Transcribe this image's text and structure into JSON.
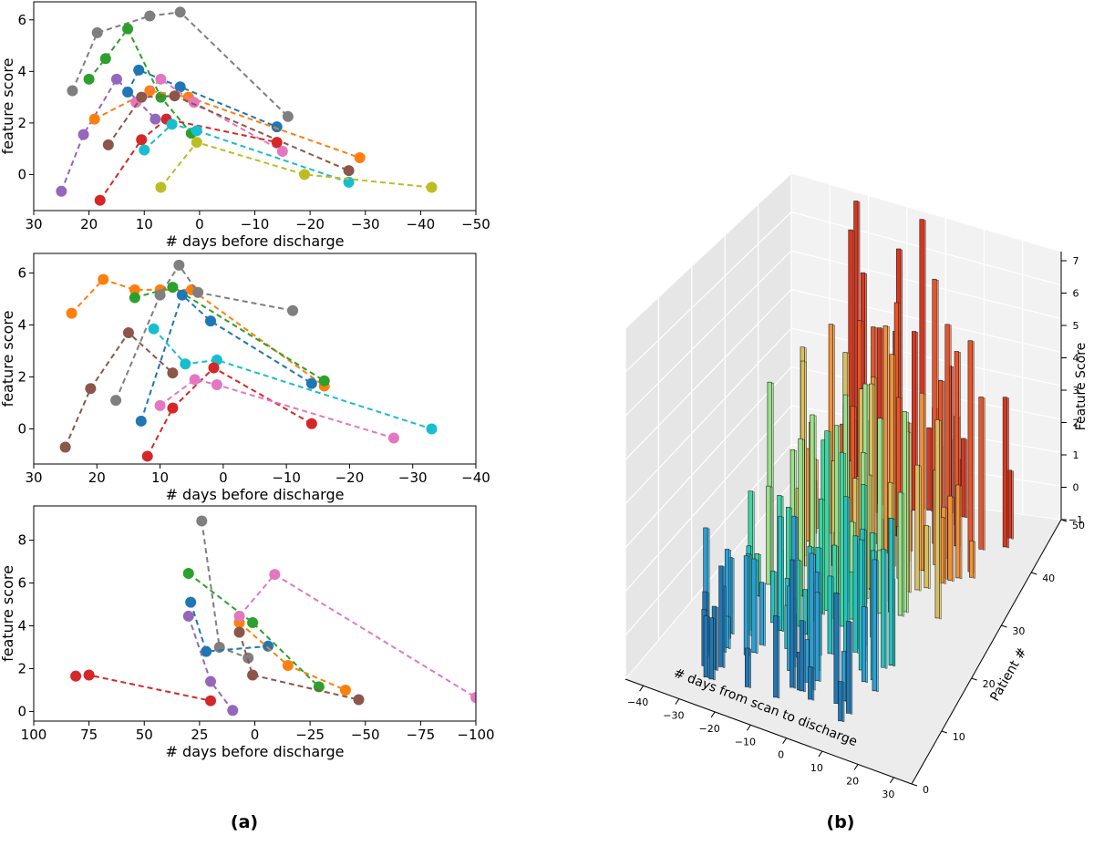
{
  "panel_labels": {
    "a": "(a)",
    "b": "(b)"
  },
  "colors": {
    "blue": "#1f77b4",
    "orange": "#ff7f0e",
    "green": "#2ca02c",
    "red": "#d62728",
    "purple": "#9467bd",
    "brown": "#8c564b",
    "pink": "#e377c2",
    "gray": "#7f7f7f",
    "olive": "#bcbd22",
    "cyan": "#17becf"
  },
  "chart_data": [
    {
      "type": "line",
      "xlabel": "# days before discharge",
      "ylabel": "feature score",
      "xlim": [
        30,
        -50
      ],
      "ylim": [
        -1.4,
        6.7
      ],
      "xticks": [
        30,
        20,
        10,
        0,
        -10,
        -20,
        -30,
        -40,
        -50
      ],
      "yticks": [
        0,
        2,
        4,
        6
      ],
      "xtick_labels": [
        "30",
        "20",
        "10",
        "0",
        "−10",
        "−20",
        "−30",
        "−40",
        "−50"
      ],
      "ytick_labels": [
        "0",
        "2",
        "4",
        "6"
      ],
      "series": [
        {
          "color": "gray",
          "x": [
            23,
            18.5,
            9,
            3.5,
            -16
          ],
          "y": [
            3.25,
            5.5,
            6.15,
            6.3,
            2.25
          ]
        },
        {
          "color": "green",
          "x": [
            20,
            17,
            13,
            7,
            1.5
          ],
          "y": [
            3.7,
            4.5,
            5.65,
            3.0,
            1.6
          ]
        },
        {
          "color": "purple",
          "x": [
            25,
            21,
            15,
            8
          ],
          "y": [
            -0.65,
            1.55,
            3.7,
            2.15
          ]
        },
        {
          "color": "blue",
          "x": [
            13,
            11,
            3.5,
            -14
          ],
          "y": [
            3.2,
            4.05,
            3.4,
            1.85
          ]
        },
        {
          "color": "orange",
          "x": [
            19,
            9,
            2,
            -29
          ],
          "y": [
            2.15,
            3.25,
            3.0,
            0.65
          ]
        },
        {
          "color": "pink",
          "x": [
            11.5,
            7,
            1,
            -15
          ],
          "y": [
            2.8,
            3.7,
            2.8,
            0.9
          ]
        },
        {
          "color": "brown",
          "x": [
            16.5,
            10.5,
            4.5,
            -27
          ],
          "y": [
            1.15,
            3.0,
            3.05,
            0.15
          ]
        },
        {
          "color": "red",
          "x": [
            18,
            10.5,
            6,
            -14
          ],
          "y": [
            -1.0,
            1.35,
            2.15,
            1.25
          ]
        },
        {
          "color": "cyan",
          "x": [
            10,
            5,
            0.5,
            -27
          ],
          "y": [
            0.95,
            1.95,
            1.7,
            -0.3
          ]
        },
        {
          "color": "olive",
          "x": [
            7,
            0.5,
            -19,
            -42
          ],
          "y": [
            -0.5,
            1.25,
            0.0,
            -0.5
          ]
        }
      ]
    },
    {
      "type": "line",
      "xlabel": "# days before discharge",
      "ylabel": "feature score",
      "xlim": [
        30,
        -40
      ],
      "ylim": [
        -1.35,
        6.75
      ],
      "xticks": [
        30,
        20,
        10,
        0,
        -10,
        -20,
        -30,
        -40
      ],
      "yticks": [
        0,
        2,
        4,
        6
      ],
      "xtick_labels": [
        "30",
        "20",
        "10",
        "0",
        "−10",
        "−20",
        "−30",
        "−40"
      ],
      "ytick_labels": [
        "0",
        "2",
        "4",
        "6"
      ],
      "series": [
        {
          "color": "orange",
          "x": [
            24,
            19,
            14,
            10,
            5,
            -16
          ],
          "y": [
            4.45,
            5.75,
            5.35,
            5.35,
            5.35,
            1.65
          ]
        },
        {
          "color": "green",
          "x": [
            14,
            8,
            -16
          ],
          "y": [
            5.05,
            5.45,
            1.85
          ]
        },
        {
          "color": "gray",
          "x": [
            17,
            10,
            7,
            4,
            -11
          ],
          "y": [
            1.1,
            5.15,
            6.3,
            5.25,
            4.55
          ]
        },
        {
          "color": "blue",
          "x": [
            13,
            6.5,
            2,
            -14
          ],
          "y": [
            0.3,
            5.15,
            4.15,
            1.75
          ]
        },
        {
          "color": "brown",
          "x": [
            25,
            21,
            15,
            8
          ],
          "y": [
            -0.7,
            1.55,
            3.7,
            2.15
          ]
        },
        {
          "color": "cyan",
          "x": [
            11,
            6,
            1,
            -33
          ],
          "y": [
            3.85,
            2.5,
            2.65,
            0.0
          ]
        },
        {
          "color": "red",
          "x": [
            12,
            8,
            1.5,
            -14
          ],
          "y": [
            -1.05,
            0.8,
            2.35,
            0.2
          ]
        },
        {
          "color": "pink",
          "x": [
            10,
            4.5,
            1,
            -27
          ],
          "y": [
            0.9,
            1.9,
            1.7,
            -0.35
          ]
        },
        {
          "color": "purple",
          "x": [],
          "y": []
        }
      ]
    },
    {
      "type": "line",
      "xlabel": "# days before discharge",
      "ylabel": "feature score",
      "xlim": [
        100,
        -100
      ],
      "ylim": [
        -0.45,
        9.6
      ],
      "xticks": [
        100,
        75,
        50,
        25,
        0,
        -25,
        -50,
        -75,
        -100
      ],
      "yticks": [
        0,
        2,
        4,
        6,
        8
      ],
      "xtick_labels": [
        "100",
        "75",
        "50",
        "25",
        "0",
        "−25",
        "−50",
        "−75",
        "−100"
      ],
      "ytick_labels": [
        "0",
        "2",
        "4",
        "6",
        "8"
      ],
      "series": [
        {
          "color": "red",
          "x": [
            81,
            75,
            20
          ],
          "y": [
            1.65,
            1.7,
            0.5
          ]
        },
        {
          "color": "gray",
          "x": [
            24,
            16,
            3
          ],
          "y": [
            8.9,
            3.0,
            2.5
          ]
        },
        {
          "color": "green",
          "x": [
            30,
            1,
            -29
          ],
          "y": [
            6.45,
            4.15,
            1.15
          ]
        },
        {
          "color": "blue",
          "x": [
            29,
            22,
            -6
          ],
          "y": [
            5.1,
            2.8,
            3.05
          ]
        },
        {
          "color": "purple",
          "x": [
            30,
            20,
            10
          ],
          "y": [
            4.45,
            1.4,
            0.05
          ]
        },
        {
          "color": "orange",
          "x": [
            7,
            -15,
            -41
          ],
          "y": [
            4.15,
            2.15,
            1.0
          ]
        },
        {
          "color": "brown",
          "x": [
            7,
            1,
            -47
          ],
          "y": [
            3.7,
            1.7,
            0.55
          ]
        },
        {
          "color": "pink",
          "x": [
            7,
            -9,
            -100
          ],
          "y": [
            4.45,
            6.4,
            0.65
          ]
        }
      ]
    },
    {
      "type": "bar3d",
      "xlabel": "# days from scan to discharge",
      "ylabel": "Patient #",
      "zlabel": "Feature Score",
      "xticks": [
        -40,
        -30,
        -20,
        -10,
        0,
        10,
        20,
        30
      ],
      "xtick_labels": [
        "−40",
        "−30",
        "−20",
        "−10",
        "0",
        "10",
        "20",
        "30"
      ],
      "yticks": [
        0,
        10,
        20,
        30,
        40,
        50
      ],
      "ytick_labels": [
        "0",
        "10",
        "20",
        "30",
        "40",
        "50"
      ],
      "zticks": [
        -1,
        0,
        1,
        2,
        3,
        4,
        5,
        6,
        7
      ],
      "ztick_labels": [
        "−1",
        "0",
        "1",
        "2",
        "3",
        "4",
        "5",
        "6",
        "7"
      ],
      "zlim": [
        -1,
        7
      ]
    }
  ]
}
